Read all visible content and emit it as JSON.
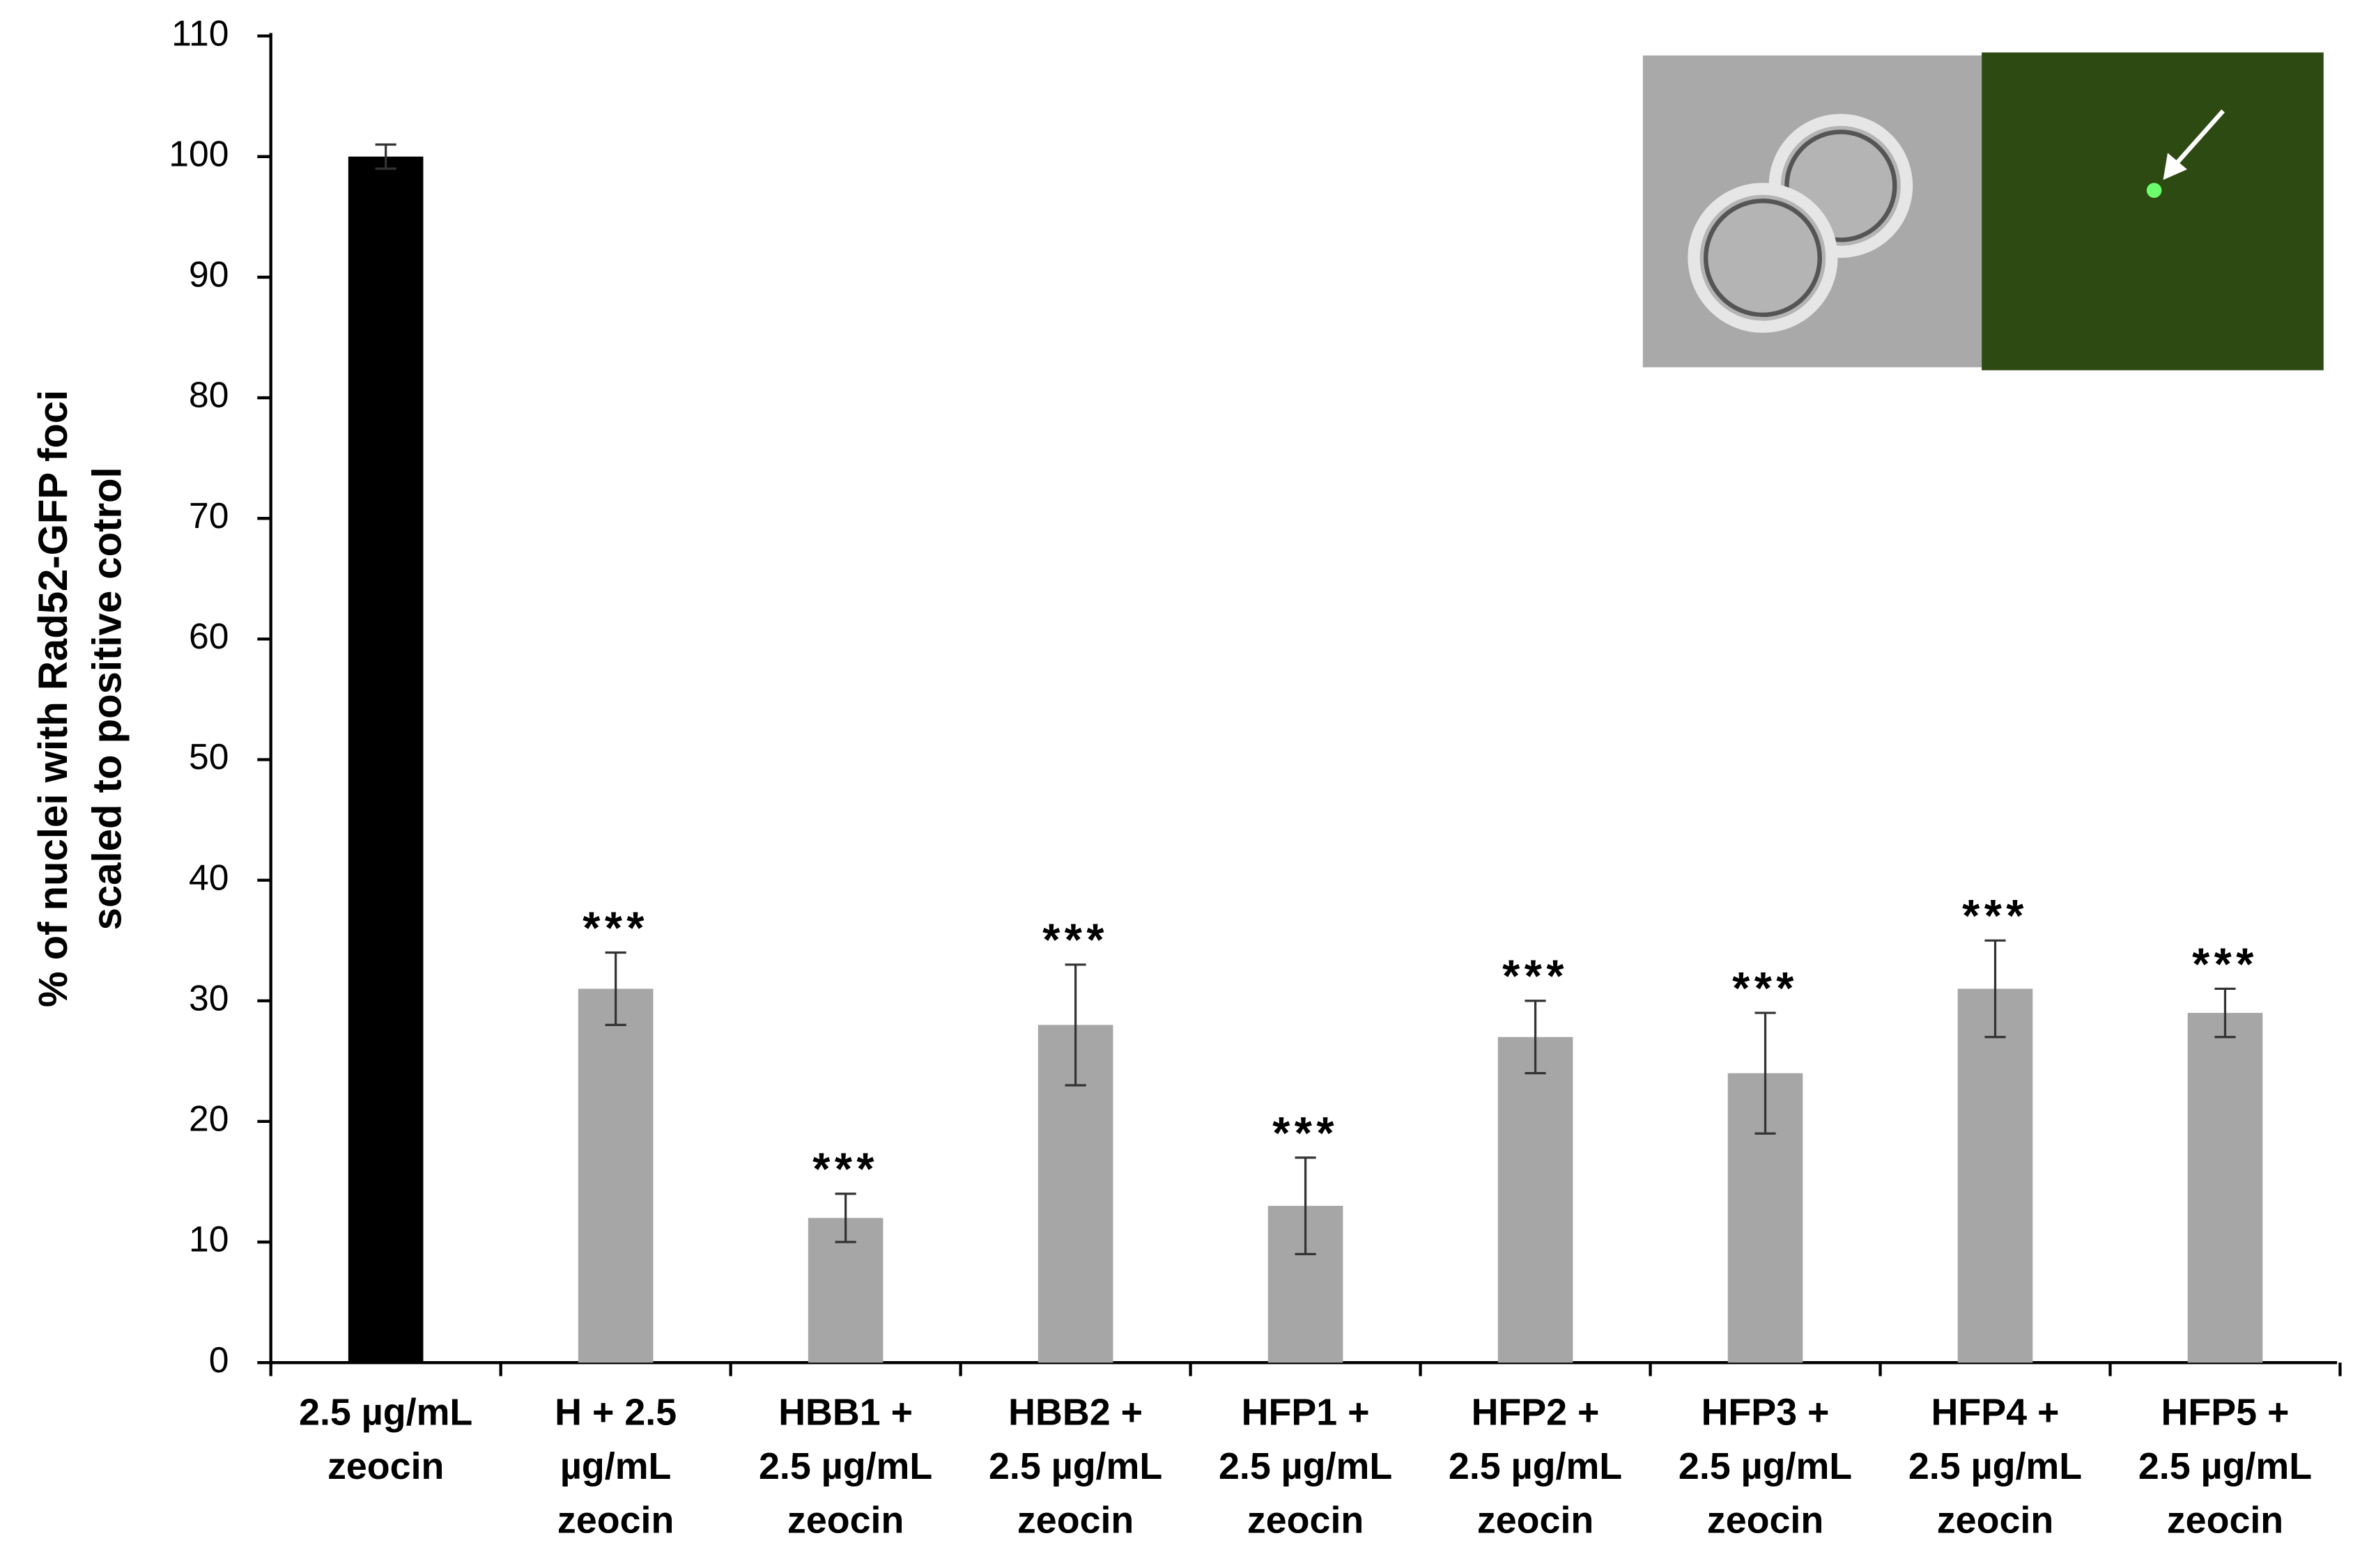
{
  "chart_data": {
    "type": "bar",
    "ylabel": "% of nuclei with Rad52-GFP foci\nscaled to positive cotrol",
    "categories": [
      "2.5 µg/mL\nzeocin",
      "H + 2.5\nµg/mL\nzeocin",
      "HBB1 +\n2.5 µg/mL\nzeocin",
      "HBB2 +\n2.5 µg/mL\nzeocin",
      "HFP1 +\n2.5 µg/mL\nzeocin",
      "HFP2 +\n2.5 µg/mL\nzeocin",
      "HFP3 +\n2.5 µg/mL\nzeocin",
      "HFP4 +\n2.5 µg/mL\nzeocin",
      "HFP5 +\n2.5 µg/mL\nzeocin"
    ],
    "values": [
      100,
      31,
      12,
      28,
      13,
      27,
      24,
      31,
      29
    ],
    "errors": [
      1,
      3,
      2,
      5,
      4,
      3,
      5,
      4,
      2
    ],
    "colors": [
      "#000000",
      "#a6a6a6",
      "#a6a6a6",
      "#a6a6a6",
      "#a6a6a6",
      "#a6a6a6",
      "#a6a6a6",
      "#a6a6a6",
      "#a6a6a6"
    ],
    "annotations": [
      null,
      "***",
      "***",
      "***",
      "***",
      "***",
      "***",
      "***",
      "***"
    ],
    "ylim": [
      0,
      110
    ],
    "yticks": [
      0,
      10,
      20,
      30,
      40,
      50,
      60,
      70,
      80,
      90,
      100,
      110
    ],
    "grid": false
  }
}
